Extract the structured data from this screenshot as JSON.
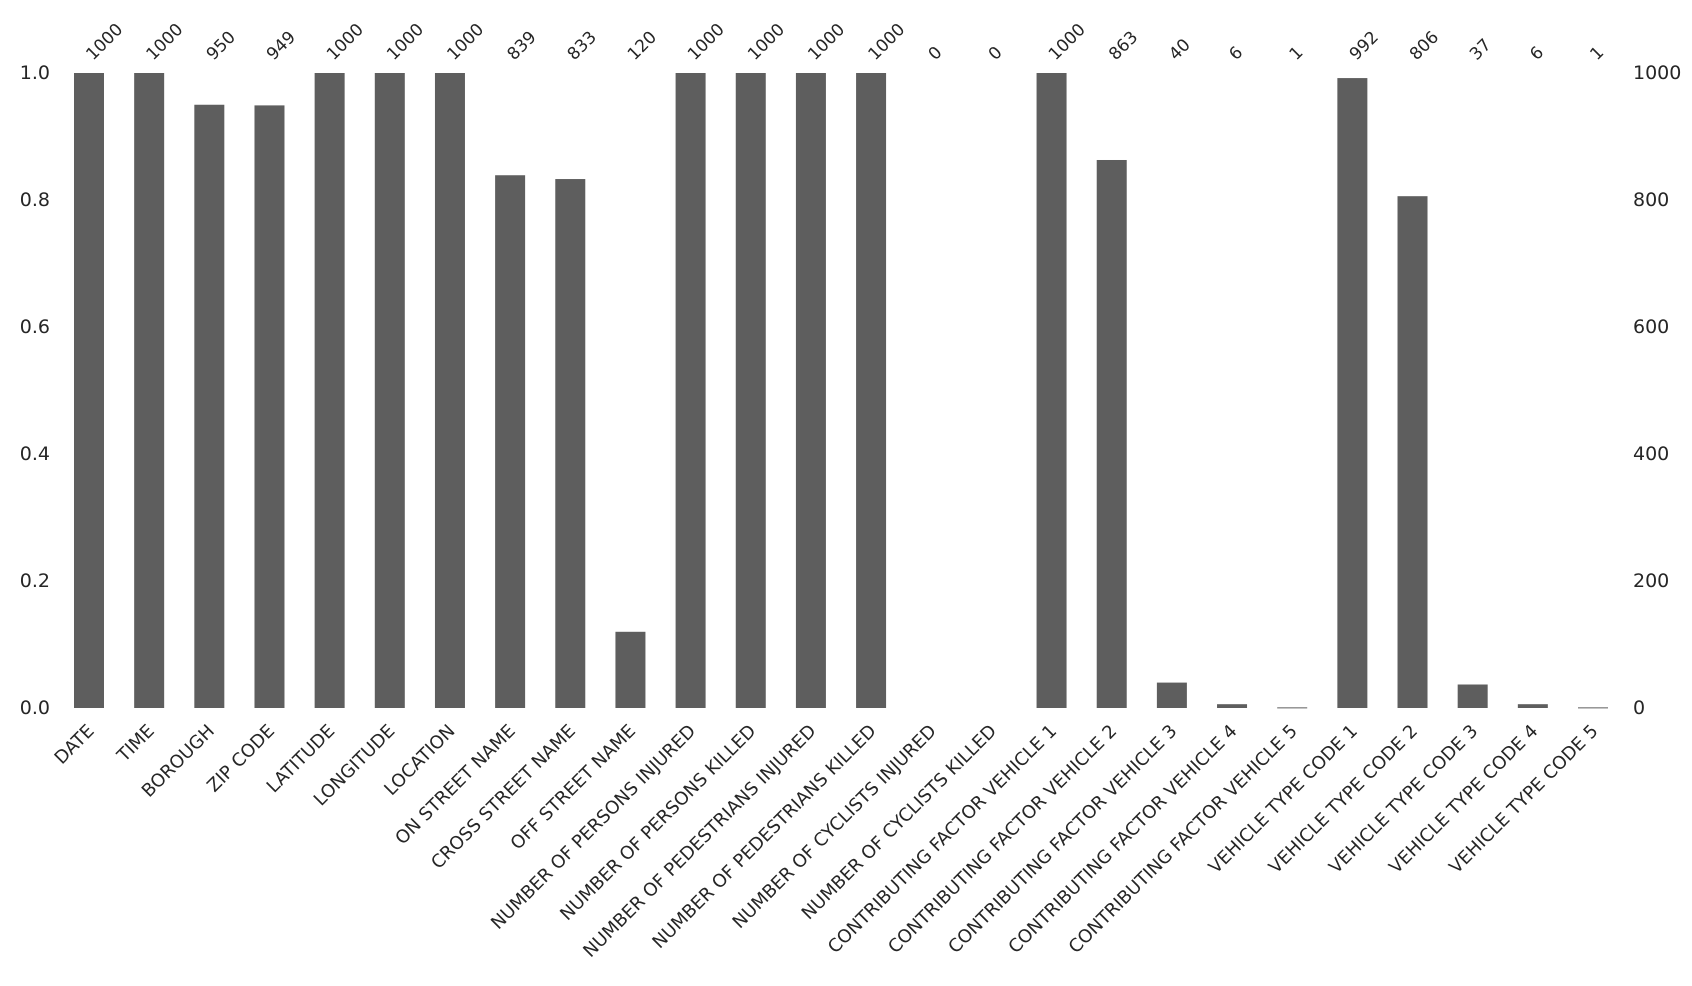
{
  "chart_data": {
    "type": "bar",
    "categories": [
      "DATE",
      "TIME",
      "BOROUGH",
      "ZIP CODE",
      "LATITUDE",
      "LONGITUDE",
      "LOCATION",
      "ON STREET NAME",
      "CROSS STREET NAME",
      "OFF STREET NAME",
      "NUMBER OF PERSONS INJURED",
      "NUMBER OF PERSONS KILLED",
      "NUMBER OF PEDESTRIANS INJURED",
      "NUMBER OF PEDESTRIANS KILLED",
      "NUMBER OF CYCLISTS INJURED",
      "NUMBER OF CYCLISTS KILLED",
      "CONTRIBUTING FACTOR VEHICLE 1",
      "CONTRIBUTING FACTOR VEHICLE 2",
      "CONTRIBUTING FACTOR VEHICLE 3",
      "CONTRIBUTING FACTOR VEHICLE 4",
      "CONTRIBUTING FACTOR VEHICLE 5",
      "VEHICLE TYPE CODE 1",
      "VEHICLE TYPE CODE 2",
      "VEHICLE TYPE CODE 3",
      "VEHICLE TYPE CODE 4",
      "VEHICLE TYPE CODE 5"
    ],
    "values": [
      1000,
      1000,
      950,
      949,
      1000,
      1000,
      1000,
      839,
      833,
      120,
      1000,
      1000,
      1000,
      1000,
      0,
      0,
      1000,
      863,
      40,
      6,
      1,
      992,
      806,
      37,
      6,
      1
    ],
    "value_labels": [
      "1000",
      "1000",
      "950",
      "949",
      "1000",
      "1000",
      "1000",
      "839",
      "833",
      "120",
      "1000",
      "1000",
      "1000",
      "1000",
      "0",
      "0",
      "1000",
      "863",
      "40",
      "6",
      "1",
      "992",
      "806",
      "37",
      "6",
      "1"
    ],
    "total": 1000,
    "ylim": [
      0,
      1.0
    ],
    "left_ticks": [
      "0.0",
      "0.2",
      "0.4",
      "0.6",
      "0.8",
      "1.0"
    ],
    "right_ticks": [
      "0",
      "200",
      "400",
      "600",
      "800",
      "1000"
    ],
    "grid": false,
    "bar_color": "#5e5e5e",
    "title": "",
    "xlabel": "",
    "ylabel": ""
  }
}
